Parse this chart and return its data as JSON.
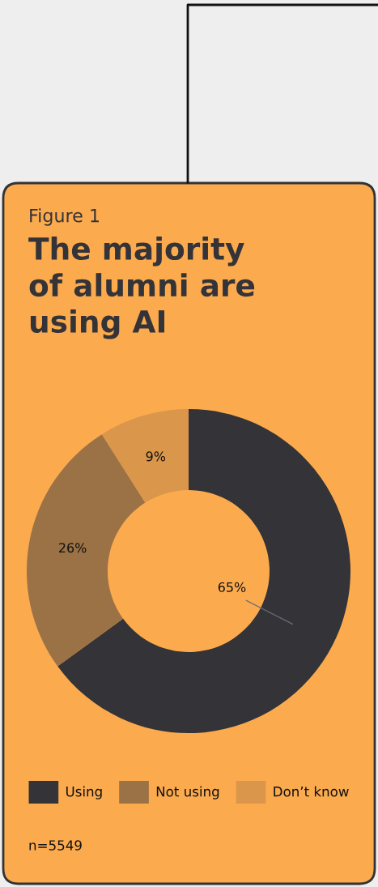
{
  "chart_data": {
    "type": "donut",
    "subtitle": "Figure 1",
    "title": "The majority\nof alumni are\nusing AI",
    "categories": [
      "Using",
      "Not using",
      "Don’t know"
    ],
    "values": [
      65,
      26,
      9
    ],
    "colors": [
      "#333338",
      "#9b7245",
      "#da964b"
    ],
    "value_labels": [
      "65%",
      "26%",
      "9%"
    ],
    "legend": "bottom",
    "annotations": [
      "n=5549"
    ]
  }
}
